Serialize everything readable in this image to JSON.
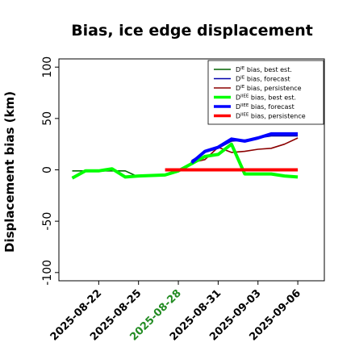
{
  "chart_data": {
    "type": "line",
    "title": "Bias, ice edge displacement",
    "xlabel": "",
    "ylabel": "Displacement bias (km)",
    "xlim": [
      "2025-08-19",
      "2025-09-08"
    ],
    "ylim": [
      -108,
      108
    ],
    "y_ticks": [
      -100,
      -50,
      0,
      50,
      100
    ],
    "x_ticks": [
      "2025-08-22",
      "2025-08-25",
      "2025-08-28",
      "2025-08-31",
      "2025-09-03",
      "2025-09-06"
    ],
    "x_tick_colors": [
      "#000000",
      "#000000",
      "#228b22",
      "#000000",
      "#000000",
      "#000000"
    ],
    "grid": false,
    "legend_position": "top-right",
    "series": [
      {
        "name": "D^IE bias, best est.",
        "legend_main": "D",
        "legend_sup": "IE",
        "legend_rest": " bias, best est.",
        "color": "#006400",
        "width": 1.6,
        "x": [
          "2025-08-20",
          "2025-08-21",
          "2025-08-22",
          "2025-08-23",
          "2025-08-24",
          "2025-08-25"
        ],
        "y": [
          -1,
          -1,
          -1,
          -1,
          -1,
          -7
        ]
      },
      {
        "name": "D^IE bias, forecast",
        "legend_main": "D",
        "legend_sup": "IE",
        "legend_rest": " bias, forecast",
        "color": "#0000aa",
        "width": 1.6,
        "x": [
          "2025-08-29",
          "2025-08-30",
          "2025-08-31",
          "2025-09-01",
          "2025-09-02",
          "2025-09-03",
          "2025-09-04",
          "2025-09-05",
          "2025-09-06"
        ],
        "y": [
          9,
          17,
          21,
          28,
          29,
          31,
          33,
          33,
          33
        ]
      },
      {
        "name": "D^IE bias, persistence",
        "legend_main": "D",
        "legend_sup": "IE",
        "legend_rest": " bias, persistence",
        "color": "#8b0000",
        "width": 1.6,
        "x": [
          "2025-08-28",
          "2025-08-29",
          "2025-08-30",
          "2025-08-31",
          "2025-09-01",
          "2025-09-02",
          "2025-09-03",
          "2025-09-04",
          "2025-09-05",
          "2025-09-06"
        ],
        "y": [
          -1,
          7,
          10,
          22,
          17,
          18,
          20,
          21,
          25,
          31
        ]
      },
      {
        "name": "D^IIEE bias, best est.",
        "legend_main": "D",
        "legend_sup": "IIEE",
        "legend_rest": " bias, best est.",
        "color": "#00ff00",
        "width": 4,
        "x": [
          "2025-08-20",
          "2025-08-21",
          "2025-08-22",
          "2025-08-23",
          "2025-08-24",
          "2025-08-25",
          "2025-08-27",
          "2025-08-28",
          "2025-08-29",
          "2025-08-30",
          "2025-08-31",
          "2025-09-01",
          "2025-09-02",
          "2025-09-03",
          "2025-09-04",
          "2025-09-05",
          "2025-09-06"
        ],
        "y": [
          -8,
          -1,
          -1,
          1,
          -7,
          -6,
          -5,
          -1,
          6,
          13,
          15,
          25,
          -4,
          -4,
          -4,
          -6,
          -7
        ]
      },
      {
        "name": "D^IIEE bias, forecast",
        "legend_main": "D",
        "legend_sup": "IIEE",
        "legend_rest": " bias, forecast",
        "color": "#0000ff",
        "width": 4,
        "x": [
          "2025-08-29",
          "2025-08-30",
          "2025-08-31",
          "2025-09-01",
          "2025-09-02",
          "2025-09-03",
          "2025-09-04",
          "2025-09-05",
          "2025-09-06"
        ],
        "y": [
          7,
          18,
          22,
          30,
          28,
          31,
          35,
          35,
          35
        ]
      },
      {
        "name": "D^IIEE bias, persistence",
        "legend_main": "D",
        "legend_sup": "IIEE",
        "legend_rest": " bias, persistence",
        "color": "#ff0000",
        "width": 4,
        "x": [
          "2025-08-27",
          "2025-09-06"
        ],
        "y": [
          0,
          0
        ]
      }
    ]
  }
}
